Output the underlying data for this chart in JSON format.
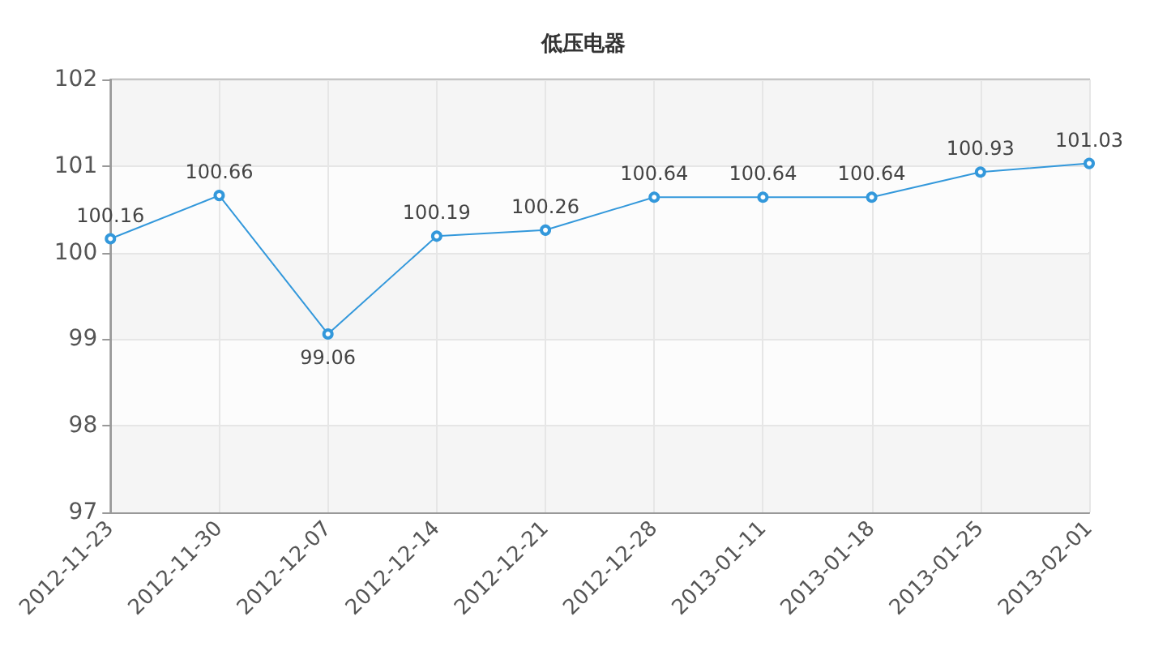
{
  "chart_data": {
    "type": "line",
    "title": "低压电器",
    "categories": [
      "2012-11-23",
      "2012-11-30",
      "2012-12-07",
      "2012-12-14",
      "2012-12-21",
      "2012-12-28",
      "2013-01-11",
      "2013-01-18",
      "2013-01-25",
      "2013-02-01"
    ],
    "series": [
      {
        "color": "#3398db",
        "values": [
          100.16,
          100.66,
          99.06,
          100.19,
          100.26,
          100.64,
          100.64,
          100.64,
          100.93,
          101.03
        ]
      }
    ],
    "ylim": [
      97,
      102
    ],
    "yticks": [
      97,
      98,
      99,
      100,
      101,
      102
    ],
    "grid": true,
    "marker": "circle",
    "line_style": "solid",
    "data_labels": true
  }
}
